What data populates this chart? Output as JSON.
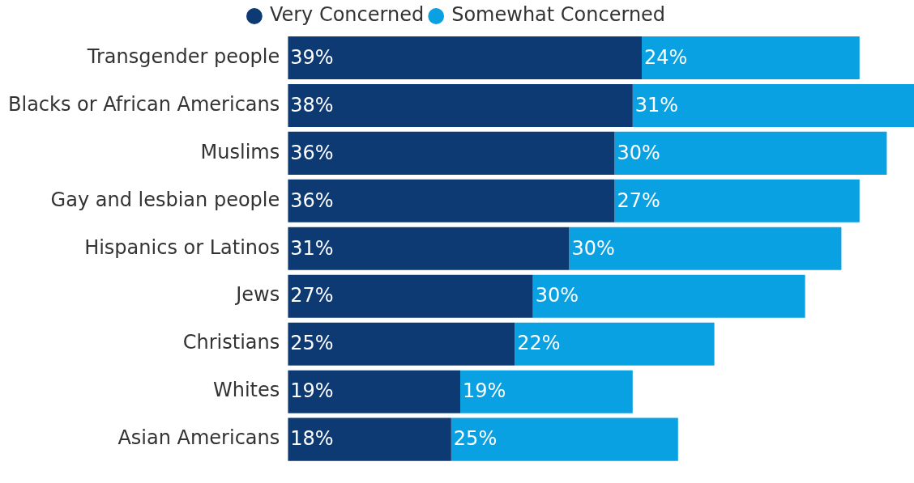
{
  "chart_data": {
    "type": "bar",
    "orientation": "horizontal",
    "stacked": true,
    "legend": "top",
    "grid": false,
    "tick_labels": "y",
    "categories": [
      "Transgender people",
      "Blacks or African Americans",
      "Muslims",
      "Gay and lesbian people",
      "Hispanics or Latinos",
      "Jews",
      "Christians",
      "Whites",
      "Asian Americans"
    ],
    "series": [
      {
        "name": "Very Concerned",
        "color": "#0d3a73",
        "values": [
          39,
          38,
          36,
          36,
          31,
          27,
          25,
          19,
          18
        ],
        "value_labels": [
          "39%",
          "38%",
          "36%",
          "36%",
          "31%",
          "27%",
          "25%",
          "19%",
          "18%"
        ]
      },
      {
        "name": "Somewhat Concerned",
        "color": "#0aa1e2",
        "values": [
          24,
          31,
          30,
          27,
          30,
          30,
          22,
          19,
          25
        ],
        "value_labels": [
          "24%",
          "31%",
          "30%",
          "27%",
          "30%",
          "30%",
          "22%",
          "19%",
          "25%"
        ]
      }
    ]
  }
}
